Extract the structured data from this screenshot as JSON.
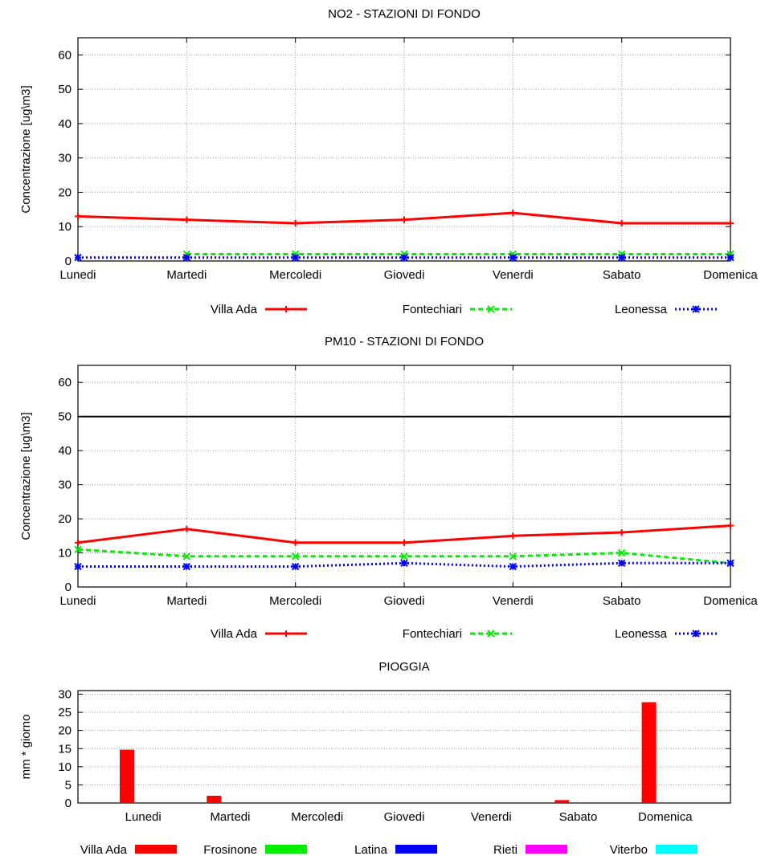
{
  "chart_data": [
    {
      "type": "line",
      "title": "NO2 - STAZIONI DI FONDO",
      "ylabel": "Concentrazione [ug\\m3]",
      "ylim": [
        0,
        65
      ],
      "yticks": [
        0,
        10,
        20,
        30,
        40,
        50,
        60
      ],
      "grid": true,
      "legend_position": "bottom",
      "categories": [
        "Lunedi",
        "Martedi",
        "Mercoledi",
        "Giovedi",
        "Venerdi",
        "Sabato",
        "Domenica"
      ],
      "series": [
        {
          "name": "Villa Ada",
          "color": "#ff0000",
          "dash": "solid",
          "marker": "plus",
          "values": [
            13,
            12,
            11,
            12,
            14,
            11,
            11
          ]
        },
        {
          "name": "Fontechiari",
          "color": "#00ee00",
          "dash": "dashed",
          "marker": "cross",
          "values": [
            null,
            2,
            2,
            2,
            2,
            2,
            2
          ]
        },
        {
          "name": "Leonessa",
          "color": "#0000ff",
          "dash": "dotted",
          "marker": "star",
          "values": [
            1,
            1,
            1,
            1,
            1,
            1,
            1
          ]
        }
      ]
    },
    {
      "type": "line",
      "title": "PM10 - STAZIONI DI FONDO",
      "ylabel": "Concentrazione [ug\\m3]",
      "ylim": [
        0,
        65
      ],
      "yticks": [
        0,
        10,
        20,
        30,
        40,
        50,
        60
      ],
      "grid": true,
      "legend_position": "bottom",
      "threshold": 50,
      "categories": [
        "Lunedi",
        "Martedi",
        "Mercoledi",
        "Giovedi",
        "Venerdi",
        "Sabato",
        "Domenica"
      ],
      "series": [
        {
          "name": "Villa Ada",
          "color": "#ff0000",
          "dash": "solid",
          "marker": "plus",
          "values": [
            13,
            17,
            13,
            13,
            15,
            16,
            18
          ]
        },
        {
          "name": "Fontechiari",
          "color": "#00ee00",
          "dash": "dashed",
          "marker": "cross",
          "values": [
            11,
            9,
            9,
            9,
            9,
            10,
            7
          ]
        },
        {
          "name": "Leonessa",
          "color": "#0000ff",
          "dash": "dotted",
          "marker": "star",
          "values": [
            6,
            6,
            6,
            7,
            6,
            7,
            7
          ]
        }
      ]
    },
    {
      "type": "bar",
      "title": "PIOGGIA",
      "ylabel": "mm * giorno",
      "ylim": [
        0,
        31
      ],
      "yticks": [
        0,
        5,
        10,
        15,
        20,
        25,
        30
      ],
      "grid": true,
      "legend_position": "bottom",
      "categories": [
        "Lunedi",
        "Martedi",
        "Mercoledi",
        "Giovedi",
        "Venerdi",
        "Sabato",
        "Domenica"
      ],
      "series": [
        {
          "name": "Villa Ada",
          "color": "#ff0000",
          "values": [
            14.7,
            2,
            0,
            0,
            0,
            0.8,
            27.8
          ]
        },
        {
          "name": "Frosinone",
          "color": "#00ee00",
          "values": [
            0,
            0,
            0,
            0,
            0,
            0,
            0
          ]
        },
        {
          "name": "Latina",
          "color": "#0000ff",
          "values": [
            0,
            0,
            0,
            0,
            0,
            0,
            0
          ]
        },
        {
          "name": "Rieti",
          "color": "#ff00ff",
          "values": [
            0,
            0,
            0,
            0,
            0,
            0,
            0
          ]
        },
        {
          "name": "Viterbo",
          "color": "#00ffff",
          "values": [
            0,
            0,
            0,
            0,
            0,
            0,
            0
          ]
        }
      ]
    }
  ]
}
